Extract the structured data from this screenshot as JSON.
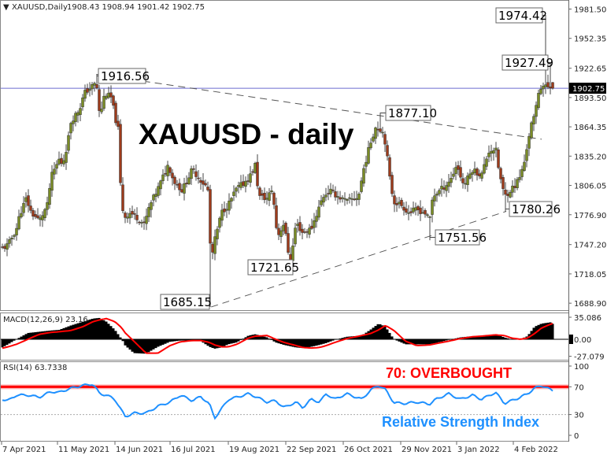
{
  "header": {
    "arrow": "▼",
    "symbol": "XAUUSD,Daily",
    "ohlc": "1908.43 1908.94 1901.42 1902.75"
  },
  "overlay_title": "XAUUSD - daily",
  "macd_label": "MACD(12,26,9) 23.16",
  "rsi_label": "RSI(14) 63.7338",
  "rsi_overbought_text": "70: OVERBOUGHT",
  "rsi_name_text": "Relative Strength Index",
  "colors": {
    "bull": "#7a8c25",
    "bear": "#9e3b1b",
    "macd_hist": "#000000",
    "macd_signal": "#ff0000",
    "rsi_line": "#1e90ff",
    "rsi_overbought": "#ff0000",
    "price_line": "#6b6bcf"
  },
  "chart_data": {
    "type": "candlestick",
    "symbol": "XAUUSD",
    "timeframe": "Daily",
    "last": {
      "open": 1908.43,
      "high": 1908.94,
      "low": 1901.42,
      "close": 1902.75
    },
    "current_price_label": "1902.75",
    "ylim": [
      1688.9,
      1981.5
    ],
    "y_ticks": [
      "1981.50",
      "1952.35",
      "1922.65",
      "1893.50",
      "1864.35",
      "1835.20",
      "1806.05",
      "1776.90",
      "1747.20",
      "1718.05",
      "1688.90"
    ],
    "x_ticks": [
      {
        "label": "7 Apr 2021",
        "date": "2021-04-07"
      },
      {
        "label": "11 May 2021",
        "date": "2021-05-11"
      },
      {
        "label": "14 Jun 2021",
        "date": "2021-06-14"
      },
      {
        "label": "16 Jul 2021",
        "date": "2021-07-16"
      },
      {
        "label": "19 Aug 2021",
        "date": "2021-08-19"
      },
      {
        "label": "22 Sep 2021",
        "date": "2021-09-22"
      },
      {
        "label": "26 Oct 2021",
        "date": "2021-10-26"
      },
      {
        "label": "29 Nov 2021",
        "date": "2021-11-29"
      },
      {
        "label": "3 Jan 2022",
        "date": "2022-01-03"
      },
      {
        "label": "4 Feb 2022",
        "date": "2022-02-04"
      }
    ],
    "close_path": [
      [
        "2021-04-07",
        1743
      ],
      [
        "2021-04-11",
        1747
      ],
      [
        "2021-04-16",
        1763
      ],
      [
        "2021-04-18",
        1777
      ],
      [
        "2021-04-22",
        1793
      ],
      [
        "2021-04-25",
        1779
      ],
      [
        "2021-04-30",
        1771
      ],
      [
        "2021-05-05",
        1787
      ],
      [
        "2021-05-07",
        1814
      ],
      [
        "2021-05-12",
        1832
      ],
      [
        "2021-05-14",
        1827
      ],
      [
        "2021-05-17",
        1848
      ],
      [
        "2021-05-19",
        1870
      ],
      [
        "2021-05-24",
        1882
      ],
      [
        "2021-05-27",
        1898
      ],
      [
        "2021-05-31",
        1904
      ],
      [
        "2021-06-03",
        1908
      ],
      [
        "2021-06-05",
        1874
      ],
      [
        "2021-06-08",
        1898
      ],
      [
        "2021-06-12",
        1893
      ],
      [
        "2021-06-14",
        1874
      ],
      [
        "2021-06-16",
        1861
      ],
      [
        "2021-06-17",
        1811
      ],
      [
        "2021-06-19",
        1774
      ],
      [
        "2021-06-23",
        1779
      ],
      [
        "2021-06-27",
        1774
      ],
      [
        "2021-07-01",
        1767
      ],
      [
        "2021-07-04",
        1785
      ],
      [
        "2021-07-09",
        1803
      ],
      [
        "2021-07-15",
        1827
      ],
      [
        "2021-07-18",
        1811
      ],
      [
        "2021-07-23",
        1801
      ],
      [
        "2021-07-29",
        1822
      ],
      [
        "2021-08-03",
        1811
      ],
      [
        "2021-08-07",
        1803
      ],
      [
        "2021-08-08",
        1761
      ],
      [
        "2021-08-09",
        1731
      ],
      [
        "2021-08-11",
        1751
      ],
      [
        "2021-08-15",
        1779
      ],
      [
        "2021-08-19",
        1787
      ],
      [
        "2021-08-24",
        1803
      ],
      [
        "2021-08-28",
        1808
      ],
      [
        "2021-09-01",
        1816
      ],
      [
        "2021-09-04",
        1827
      ],
      [
        "2021-09-06",
        1795
      ],
      [
        "2021-09-11",
        1793
      ],
      [
        "2021-09-14",
        1803
      ],
      [
        "2021-09-17",
        1755
      ],
      [
        "2021-09-21",
        1769
      ],
      [
        "2021-09-23",
        1743
      ],
      [
        "2021-09-25",
        1730
      ],
      [
        "2021-09-28",
        1769
      ],
      [
        "2021-10-02",
        1759
      ],
      [
        "2021-10-07",
        1763
      ],
      [
        "2021-10-14",
        1795
      ],
      [
        "2021-10-18",
        1801
      ],
      [
        "2021-10-23",
        1795
      ],
      [
        "2021-10-28",
        1790
      ],
      [
        "2021-11-04",
        1795
      ],
      [
        "2021-11-07",
        1822
      ],
      [
        "2021-11-11",
        1848
      ],
      [
        "2021-11-14",
        1864
      ],
      [
        "2021-11-18",
        1861
      ],
      [
        "2021-11-20",
        1848
      ],
      [
        "2021-11-23",
        1806
      ],
      [
        "2021-11-25",
        1790
      ],
      [
        "2021-11-29",
        1787
      ],
      [
        "2021-12-04",
        1779
      ],
      [
        "2021-12-09",
        1782
      ],
      [
        "2021-12-14",
        1779
      ],
      [
        "2021-12-17",
        1771
      ],
      [
        "2021-12-19",
        1795
      ],
      [
        "2021-12-27",
        1806
      ],
      [
        "2021-12-31",
        1814
      ],
      [
        "2022-01-03",
        1827
      ],
      [
        "2022-01-07",
        1806
      ],
      [
        "2022-01-12",
        1822
      ],
      [
        "2022-01-17",
        1816
      ],
      [
        "2022-01-21",
        1840
      ],
      [
        "2022-01-25",
        1843
      ],
      [
        "2022-01-27",
        1819
      ],
      [
        "2022-01-30",
        1795
      ],
      [
        "2022-02-03",
        1803
      ],
      [
        "2022-02-05",
        1806
      ],
      [
        "2022-02-08",
        1816
      ],
      [
        "2022-02-10",
        1827
      ],
      [
        "2022-02-12",
        1848
      ],
      [
        "2022-02-14",
        1866
      ],
      [
        "2022-02-16",
        1874
      ],
      [
        "2022-02-18",
        1898
      ],
      [
        "2022-02-20",
        1906
      ],
      [
        "2022-02-22",
        1904
      ],
      [
        "2022-02-25",
        1904
      ],
      [
        "2022-02-27",
        1902.75
      ]
    ],
    "annotations": [
      {
        "label": "1916.56",
        "value": 1916.56,
        "date": "2021-06-03"
      },
      {
        "label": "1685.15",
        "value": 1685.15,
        "date": "2021-08-09"
      },
      {
        "label": "1721.65",
        "value": 1721.65,
        "date": "2021-09-25"
      },
      {
        "label": "1877.10",
        "value": 1877.1,
        "date": "2021-11-17"
      },
      {
        "label": "1751.56",
        "value": 1751.56,
        "date": "2021-12-17"
      },
      {
        "label": "1780.26",
        "value": 1780.26,
        "date": "2022-01-31"
      },
      {
        "label": "1927.49",
        "value": 1927.49,
        "date": "2022-02-25"
      },
      {
        "label": "1974.42",
        "value": 1974.42,
        "date": "2022-02-22"
      }
    ],
    "trendlines": [
      {
        "from": [
          "2021-06-03",
          1916.56
        ],
        "to": [
          "2022-02-20",
          1852
        ],
        "style": "dashed"
      },
      {
        "from": [
          "2021-08-09",
          1685.15
        ],
        "to": [
          "2022-01-31",
          1780.26
        ],
        "style": "dashed"
      }
    ],
    "macd": {
      "params": "12,26,9",
      "value": 23.16,
      "y_ticks": [
        "35.086",
        "0.00",
        "-27.079"
      ],
      "dates": [
        "2021-04-06",
        "2021-04-11",
        "2021-04-16",
        "2021-04-23",
        "2021-04-30",
        "2021-05-07",
        "2021-05-12",
        "2021-05-19",
        "2021-05-26",
        "2021-06-01",
        "2021-06-05",
        "2021-06-09",
        "2021-06-14",
        "2021-06-18",
        "2021-06-20",
        "2021-06-25",
        "2021-07-02",
        "2021-07-09",
        "2021-07-16",
        "2021-07-22",
        "2021-07-29",
        "2021-08-03",
        "2021-08-08",
        "2021-08-11",
        "2021-08-15",
        "2021-08-19",
        "2021-08-24",
        "2021-08-31",
        "2021-09-04",
        "2021-09-11",
        "2021-09-16",
        "2021-09-21",
        "2021-09-28",
        "2021-10-02",
        "2021-10-07",
        "2021-10-12",
        "2021-10-16",
        "2021-10-21",
        "2021-10-28",
        "2021-11-06",
        "2021-11-11",
        "2021-11-16",
        "2021-11-20",
        "2021-11-25",
        "2021-12-02",
        "2021-12-09",
        "2021-12-17",
        "2021-12-21",
        "2021-12-29",
        "2022-01-05",
        "2022-01-12",
        "2022-01-17",
        "2022-01-25",
        "2022-01-30",
        "2022-02-03",
        "2022-02-08",
        "2022-02-12",
        "2022-02-16",
        "2022-02-20",
        "2022-02-25",
        "2022-02-27"
      ],
      "histogram": [
        -15,
        -8,
        0,
        10,
        12,
        14,
        15,
        22,
        28,
        33,
        34,
        28,
        15,
        0,
        -10,
        -22,
        -23,
        -12,
        -4,
        -2,
        -2,
        -3,
        -12,
        -15,
        -13,
        -8,
        -5,
        6,
        8,
        3,
        -5,
        -9,
        -13,
        -14,
        -12,
        -9,
        -6,
        -1,
        4,
        6,
        15,
        25,
        20,
        0,
        -8,
        -8,
        -8,
        -6,
        -1,
        3,
        5,
        6,
        8,
        3,
        0,
        0,
        5,
        20,
        25,
        27,
        23.16
      ],
      "signal": [
        -15,
        -12,
        -8,
        0,
        8,
        11,
        12,
        14,
        20,
        28,
        31,
        33,
        28,
        18,
        10,
        -3,
        -22,
        -22,
        -10,
        -4,
        -2,
        -2,
        -5,
        -9,
        -12,
        -12,
        -8,
        2,
        5,
        6,
        0,
        -5,
        -10,
        -13,
        -14,
        -13,
        -10,
        -5,
        1,
        6,
        9,
        15,
        22,
        14,
        -3,
        -10,
        -9,
        -7,
        -3,
        1,
        4,
        5,
        7,
        6,
        2,
        0,
        2,
        9,
        18,
        24,
        26
      ]
    },
    "rsi": {
      "period": 14,
      "value": 63.7338,
      "levels": [
        70,
        30
      ],
      "y_ticks": [
        "100",
        "70",
        "30",
        "0"
      ],
      "values": [
        53,
        50,
        58,
        58,
        55,
        63,
        62,
        68,
        72,
        74,
        60,
        58,
        52,
        35,
        27,
        32,
        32,
        42,
        48,
        58,
        50,
        56,
        45,
        25,
        38,
        52,
        55,
        60,
        56,
        48,
        50,
        40,
        48,
        40,
        52,
        48,
        60,
        52,
        60,
        52,
        65,
        72,
        66,
        47,
        46,
        48,
        45,
        52,
        60,
        52,
        58,
        52,
        62,
        46,
        50,
        55,
        60,
        68,
        72,
        66,
        63.7
      ]
    }
  }
}
